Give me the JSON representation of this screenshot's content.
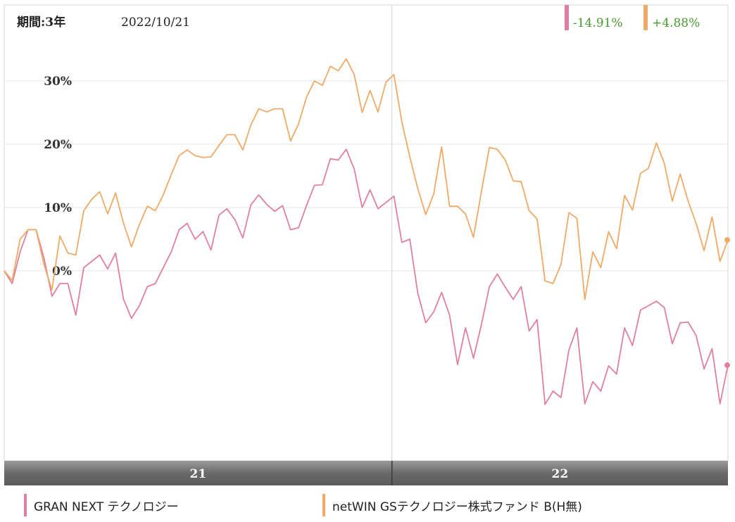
{
  "header": {
    "period_label": "期間:3年",
    "date_label": "2022/10/21"
  },
  "returns": [
    {
      "text": "-14.91%",
      "color": "#e07fa3",
      "text_color": "#4a9a32"
    },
    {
      "text": "+4.88%",
      "color": "#eeaa66",
      "text_color": "#4a9a32"
    }
  ],
  "legend": [
    {
      "label": "GRAN NEXT テクノロジー",
      "color": "#e07fa3"
    },
    {
      "label": "netWIN GSテクノロジー株式ファンド B(H無)",
      "color": "#eeaa66"
    }
  ],
  "chart_data": {
    "type": "line",
    "ylim": [
      -30,
      42
    ],
    "y_ticks": [
      0,
      10,
      20,
      30
    ],
    "y_tick_labels": [
      "0%",
      "10%",
      "20%",
      "30%"
    ],
    "x_range": [
      0,
      112
    ],
    "x_axis_labels": [
      {
        "label": "21",
        "x": 30
      },
      {
        "label": "22",
        "x": 86
      }
    ],
    "year_divider_x": 60,
    "grid": true,
    "series": [
      {
        "name": "GRAN NEXT テクノロジー",
        "color": "#e07fa3",
        "values": [
          0,
          -2,
          3,
          6.5,
          6.5,
          2,
          -4,
          -2,
          -2,
          -7,
          0.5,
          1.5,
          2.5,
          0.3,
          2.8,
          -4.5,
          -7.5,
          -5.5,
          -2.5,
          -2,
          0.5,
          3,
          6.5,
          7.5,
          5,
          6.2,
          3.3,
          8.8,
          9.8,
          8.1,
          5.2,
          10.4,
          12,
          10.5,
          9.4,
          10.3,
          6.5,
          6.8,
          10.3,
          13.5,
          13.6,
          17.7,
          17.5,
          19.2,
          16.1,
          10,
          12.8,
          9.8,
          10.8,
          11.8,
          4.5,
          5,
          -3.5,
          -8.2,
          -6.5,
          -3.4,
          -7,
          -14.8,
          -9,
          -13.8,
          -8.5,
          -2.5,
          -0.5,
          -2.6,
          -4.5,
          -2.5,
          -9.5,
          -7.7,
          -21.1,
          -19,
          -20,
          -12.5,
          -9,
          -21,
          -17.5,
          -19,
          -15,
          -16.3,
          -9,
          -11.8,
          -6.2,
          -5.5,
          -4.8,
          -5.8,
          -11.5,
          -8.2,
          -8.1,
          -10.2,
          -15.5,
          -12.3,
          -21,
          -14.9
        ]
      },
      {
        "name": "netWIN GSテクノロジー株式ファンド B(H無)",
        "color": "#eeaa66",
        "values": [
          0,
          -1.5,
          5,
          6.5,
          6.5,
          1,
          -3,
          5.5,
          2.8,
          2.5,
          9.5,
          11.3,
          12.5,
          9,
          12.3,
          7.5,
          3.8,
          7.3,
          10.2,
          9.5,
          12,
          15.2,
          18.2,
          19.1,
          18.2,
          17.9,
          18,
          19.8,
          21.5,
          21.5,
          19.1,
          23,
          25.6,
          25.1,
          25.6,
          25.6,
          20.5,
          23.2,
          27.4,
          30,
          29.3,
          32.3,
          31.6,
          33.5,
          31,
          25,
          28.5,
          25.1,
          29.8,
          31,
          23.5,
          18,
          13,
          8.9,
          12.1,
          19.6,
          10.2,
          10.2,
          9,
          5.3,
          12.5,
          19.5,
          19.2,
          17.5,
          14.2,
          14.1,
          9.5,
          8.2,
          -1.6,
          -2,
          1,
          9.2,
          8.3,
          -4.5,
          3,
          0.5,
          6.2,
          3.5,
          11.9,
          9.6,
          15.4,
          16.2,
          20.2,
          17,
          11,
          15.3,
          11,
          7.5,
          3.2,
          8.5,
          1.5,
          4.88
        ]
      }
    ]
  }
}
